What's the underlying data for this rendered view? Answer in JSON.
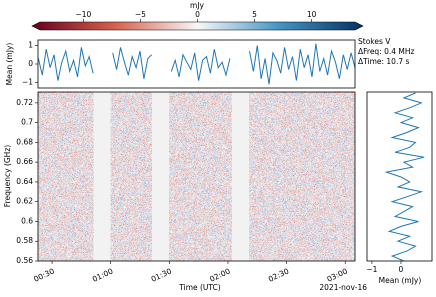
{
  "chart_data": [
    {
      "type": "colorbar",
      "label": "mJy",
      "clim": [
        -13.8,
        13.8
      ],
      "ticks": [
        {
          "value": -10,
          "label": "−10"
        },
        {
          "value": -5,
          "label": "−5"
        },
        0,
        5,
        10
      ],
      "colors": [
        "#67001f",
        "#d6604d",
        "#f7f7f7",
        "#4393c3",
        "#053061"
      ]
    },
    {
      "type": "line",
      "ylabel": "Mean (mJy)",
      "color": "#1f77b4",
      "xlim": [
        22.8,
        185
      ],
      "ylim": [
        -1.3,
        1.3
      ],
      "yticks": [
        {
          "value": -1,
          "label": "−1"
        },
        0,
        1
      ],
      "x": [
        23,
        25,
        27,
        29,
        31,
        33,
        35,
        37,
        39,
        41,
        43,
        45,
        47,
        49,
        51,
        53,
        55,
        57,
        59,
        61,
        63,
        65,
        67,
        69,
        71,
        73,
        75,
        77,
        79,
        81,
        83,
        85,
        87,
        89,
        91,
        93,
        95,
        97,
        99,
        101,
        103,
        105,
        107,
        109,
        111,
        113,
        115,
        117,
        119,
        121,
        123,
        125,
        127,
        129,
        131,
        133,
        135,
        137,
        139,
        141,
        143,
        145,
        147,
        149,
        151,
        153,
        155,
        157,
        159,
        161,
        163,
        165,
        167,
        169,
        171,
        173,
        175,
        177,
        179,
        181,
        183,
        185
      ],
      "values": [
        0.3,
        -0.6,
        0.8,
        -0.2,
        0.5,
        -0.9,
        0.1,
        0.7,
        -0.4,
        0.2,
        -0.7,
        0.9,
        -0.1,
        0.4,
        -0.5,
        null,
        null,
        null,
        null,
        0.6,
        -0.3,
        0.9,
        0.1,
        -0.6,
        0.4,
        -0.2,
        0.7,
        -0.8,
        0.3,
        0.5,
        null,
        null,
        null,
        null,
        -0.4,
        0.2,
        -0.7,
        0.5,
        0.1,
        -0.3,
        0.6,
        -0.9,
        0.2,
        0.4,
        -0.5,
        0.8,
        -0.2,
        0.1,
        -0.6,
        0.3,
        null,
        null,
        null,
        null,
        0.7,
        -0.4,
        1.0,
        -0.8,
        0.3,
        -1.1,
        0.6,
        0.2,
        -0.5,
        0.9,
        -0.3,
        0.4,
        -0.9,
        0.8,
        -0.2,
        0.5,
        -0.7,
        1.1,
        -0.4,
        0.3,
        -0.6,
        0.7,
        0.1,
        -0.8,
        0.5,
        -0.3,
        0.6,
        -0.2
      ]
    },
    {
      "type": "heatmap",
      "xlabel": "Time (UTC)",
      "ylabel": "Frequency (GHz)",
      "date": "2021-nov-16",
      "annotations": [
        "Stokes V",
        "ΔFreq: 0.4 MHz",
        "ΔTime: 10.7 s"
      ],
      "xlim": [
        22.8,
        185
      ],
      "ylim": [
        0.56,
        0.731
      ],
      "xticks": [
        {
          "value": 30,
          "label": "00:30"
        },
        {
          "value": 60,
          "label": "01:00"
        },
        {
          "value": 90,
          "label": "01:30"
        },
        {
          "value": 120,
          "label": "02:00"
        },
        {
          "value": 150,
          "label": "02:30"
        },
        {
          "value": 180,
          "label": "03:00"
        }
      ],
      "yticks": [
        0.56,
        0.58,
        0.6,
        0.62,
        0.64,
        0.66,
        0.68,
        0.7,
        0.72
      ],
      "intervals": [
        [
          22.8,
          51
        ],
        [
          60,
          81
        ],
        [
          90,
          122
        ],
        [
          131,
          185
        ]
      ],
      "gap_color": "#f2f2f2"
    },
    {
      "type": "line",
      "orientation": "horizontal",
      "xlabel": "Mean (mJy)",
      "color": "#1f77b4",
      "xlim": [
        -1.17,
        1.07
      ],
      "xticks": [
        {
          "value": -1,
          "label": "−1"
        },
        0
      ],
      "ylim": [
        0.56,
        0.731
      ],
      "y": [
        0.56,
        0.565,
        0.57,
        0.575,
        0.58,
        0.585,
        0.59,
        0.595,
        0.6,
        0.605,
        0.61,
        0.615,
        0.62,
        0.625,
        0.63,
        0.635,
        0.64,
        0.645,
        0.65,
        0.655,
        0.66,
        0.665,
        0.67,
        0.675,
        0.68,
        0.685,
        0.69,
        0.695,
        0.7,
        0.705,
        0.71,
        0.715,
        0.72,
        0.725,
        0.73
      ],
      "values": [
        0.1,
        -0.3,
        0.2,
        0.5,
        -0.1,
        0.3,
        -0.4,
        0.0,
        0.6,
        -0.2,
        0.1,
        0.4,
        -0.3,
        0.2,
        0.7,
        -0.1,
        0.3,
        0.0,
        -0.5,
        0.4,
        0.1,
        0.8,
        -0.2,
        0.3,
        0.5,
        -0.3,
        0.2,
        0.6,
        0.0,
        0.4,
        -0.2,
        0.3,
        0.7,
        0.1,
        0.5
      ]
    }
  ]
}
